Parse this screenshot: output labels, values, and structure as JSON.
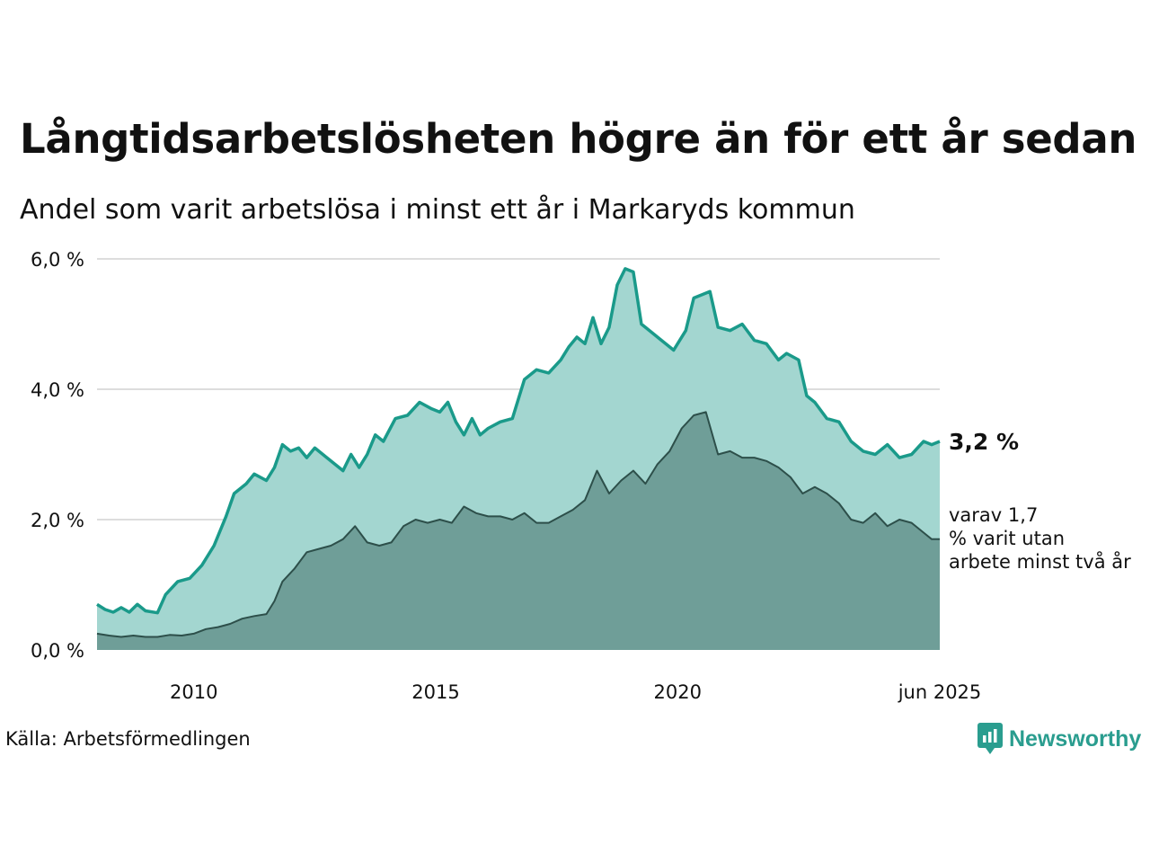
{
  "title": "Långtidsarbetslösheten högre än för ett år sedan",
  "subtitle": "Andel som varit arbetslösa i minst ett år i Markaryds kommun",
  "source": "Källa: Arbetsförmedlingen",
  "brand": "Newsworthy",
  "colors": {
    "main_line": "#1a9a8a",
    "main_area": "#a3d6d0",
    "sub_line": "#2d4f4a",
    "sub_area": "#6f9e98",
    "grid": "#dddddd",
    "brand": "#2a9d8f"
  },
  "chart_data": {
    "type": "area",
    "x_start": "2008-01",
    "x_end": "2025-06",
    "xticks": [
      {
        "date": "2010-01",
        "label": "2010"
      },
      {
        "date": "2015-01",
        "label": "2015"
      },
      {
        "date": "2020-01",
        "label": "2020"
      },
      {
        "date": "2025-06",
        "label": "jun 2025"
      }
    ],
    "ylim": [
      0,
      6
    ],
    "yticks": [
      {
        "value": 0,
        "label": "0,0 %"
      },
      {
        "value": 2,
        "label": "2,0 %"
      },
      {
        "value": 4,
        "label": "4,0 %"
      },
      {
        "value": 6,
        "label": "6,0 %"
      }
    ],
    "grid": true,
    "series": [
      {
        "label": "3,2 %",
        "points": [
          [
            "2008-01",
            0.7
          ],
          [
            "2008-03",
            0.62
          ],
          [
            "2008-05",
            0.58
          ],
          [
            "2008-07",
            0.65
          ],
          [
            "2008-09",
            0.58
          ],
          [
            "2008-11",
            0.7
          ],
          [
            "2009-01",
            0.6
          ],
          [
            "2009-04",
            0.57
          ],
          [
            "2009-06",
            0.85
          ],
          [
            "2009-09",
            1.05
          ],
          [
            "2009-12",
            1.1
          ],
          [
            "2010-03",
            1.3
          ],
          [
            "2010-06",
            1.6
          ],
          [
            "2010-09",
            2.05
          ],
          [
            "2010-11",
            2.4
          ],
          [
            "2011-02",
            2.55
          ],
          [
            "2011-04",
            2.7
          ],
          [
            "2011-07",
            2.6
          ],
          [
            "2011-09",
            2.8
          ],
          [
            "2011-11",
            3.15
          ],
          [
            "2012-01",
            3.05
          ],
          [
            "2012-03",
            3.1
          ],
          [
            "2012-05",
            2.95
          ],
          [
            "2012-07",
            3.1
          ],
          [
            "2012-10",
            2.95
          ],
          [
            "2012-12",
            2.85
          ],
          [
            "2013-02",
            2.75
          ],
          [
            "2013-04",
            3.0
          ],
          [
            "2013-06",
            2.8
          ],
          [
            "2013-08",
            3.0
          ],
          [
            "2013-10",
            3.3
          ],
          [
            "2013-12",
            3.2
          ],
          [
            "2014-03",
            3.55
          ],
          [
            "2014-06",
            3.6
          ],
          [
            "2014-09",
            3.8
          ],
          [
            "2014-12",
            3.7
          ],
          [
            "2015-02",
            3.65
          ],
          [
            "2015-04",
            3.8
          ],
          [
            "2015-06",
            3.5
          ],
          [
            "2015-08",
            3.3
          ],
          [
            "2015-10",
            3.55
          ],
          [
            "2015-12",
            3.3
          ],
          [
            "2016-02",
            3.4
          ],
          [
            "2016-05",
            3.5
          ],
          [
            "2016-08",
            3.55
          ],
          [
            "2016-11",
            4.15
          ],
          [
            "2017-02",
            4.3
          ],
          [
            "2017-05",
            4.25
          ],
          [
            "2017-08",
            4.45
          ],
          [
            "2017-10",
            4.65
          ],
          [
            "2017-12",
            4.8
          ],
          [
            "2018-02",
            4.7
          ],
          [
            "2018-04",
            5.1
          ],
          [
            "2018-06",
            4.7
          ],
          [
            "2018-08",
            4.95
          ],
          [
            "2018-10",
            5.6
          ],
          [
            "2018-12",
            5.85
          ],
          [
            "2019-02",
            5.8
          ],
          [
            "2019-04",
            5.0
          ],
          [
            "2019-06",
            4.9
          ],
          [
            "2019-09",
            4.75
          ],
          [
            "2019-12",
            4.6
          ],
          [
            "2020-03",
            4.9
          ],
          [
            "2020-05",
            5.4
          ],
          [
            "2020-07",
            5.45
          ],
          [
            "2020-09",
            5.5
          ],
          [
            "2020-11",
            4.95
          ],
          [
            "2021-02",
            4.9
          ],
          [
            "2021-05",
            5.0
          ],
          [
            "2021-08",
            4.75
          ],
          [
            "2021-11",
            4.7
          ],
          [
            "2022-02",
            4.45
          ],
          [
            "2022-04",
            4.55
          ],
          [
            "2022-07",
            4.45
          ],
          [
            "2022-09",
            3.9
          ],
          [
            "2022-11",
            3.8
          ],
          [
            "2023-02",
            3.55
          ],
          [
            "2023-05",
            3.5
          ],
          [
            "2023-08",
            3.2
          ],
          [
            "2023-11",
            3.05
          ],
          [
            "2024-02",
            3.0
          ],
          [
            "2024-05",
            3.15
          ],
          [
            "2024-08",
            2.95
          ],
          [
            "2024-11",
            3.0
          ],
          [
            "2025-02",
            3.2
          ],
          [
            "2025-04",
            3.15
          ],
          [
            "2025-06",
            3.2
          ]
        ]
      },
      {
        "label": "varav 1,7 % varit utan arbete minst två år",
        "points": [
          [
            "2008-01",
            0.25
          ],
          [
            "2008-04",
            0.22
          ],
          [
            "2008-07",
            0.2
          ],
          [
            "2008-10",
            0.22
          ],
          [
            "2009-01",
            0.2
          ],
          [
            "2009-04",
            0.2
          ],
          [
            "2009-07",
            0.23
          ],
          [
            "2009-10",
            0.22
          ],
          [
            "2010-01",
            0.25
          ],
          [
            "2010-04",
            0.32
          ],
          [
            "2010-07",
            0.35
          ],
          [
            "2010-10",
            0.4
          ],
          [
            "2011-01",
            0.48
          ],
          [
            "2011-04",
            0.52
          ],
          [
            "2011-07",
            0.55
          ],
          [
            "2011-09",
            0.75
          ],
          [
            "2011-11",
            1.05
          ],
          [
            "2012-02",
            1.25
          ],
          [
            "2012-05",
            1.5
          ],
          [
            "2012-08",
            1.55
          ],
          [
            "2012-11",
            1.6
          ],
          [
            "2013-02",
            1.7
          ],
          [
            "2013-05",
            1.9
          ],
          [
            "2013-08",
            1.65
          ],
          [
            "2013-11",
            1.6
          ],
          [
            "2014-02",
            1.65
          ],
          [
            "2014-05",
            1.9
          ],
          [
            "2014-08",
            2.0
          ],
          [
            "2014-11",
            1.95
          ],
          [
            "2015-02",
            2.0
          ],
          [
            "2015-05",
            1.95
          ],
          [
            "2015-08",
            2.2
          ],
          [
            "2015-11",
            2.1
          ],
          [
            "2016-02",
            2.05
          ],
          [
            "2016-05",
            2.05
          ],
          [
            "2016-08",
            2.0
          ],
          [
            "2016-11",
            2.1
          ],
          [
            "2017-02",
            1.95
          ],
          [
            "2017-05",
            1.95
          ],
          [
            "2017-08",
            2.05
          ],
          [
            "2017-11",
            2.15
          ],
          [
            "2018-02",
            2.3
          ],
          [
            "2018-05",
            2.75
          ],
          [
            "2018-08",
            2.4
          ],
          [
            "2018-11",
            2.6
          ],
          [
            "2019-02",
            2.75
          ],
          [
            "2019-05",
            2.55
          ],
          [
            "2019-08",
            2.85
          ],
          [
            "2019-11",
            3.05
          ],
          [
            "2020-02",
            3.4
          ],
          [
            "2020-05",
            3.6
          ],
          [
            "2020-08",
            3.65
          ],
          [
            "2020-11",
            3.0
          ],
          [
            "2021-02",
            3.05
          ],
          [
            "2021-05",
            2.95
          ],
          [
            "2021-08",
            2.95
          ],
          [
            "2021-11",
            2.9
          ],
          [
            "2022-02",
            2.8
          ],
          [
            "2022-05",
            2.65
          ],
          [
            "2022-08",
            2.4
          ],
          [
            "2022-11",
            2.5
          ],
          [
            "2023-02",
            2.4
          ],
          [
            "2023-05",
            2.25
          ],
          [
            "2023-08",
            2.0
          ],
          [
            "2023-11",
            1.95
          ],
          [
            "2024-02",
            2.1
          ],
          [
            "2024-05",
            1.9
          ],
          [
            "2024-08",
            2.0
          ],
          [
            "2024-11",
            1.95
          ],
          [
            "2025-02",
            1.8
          ],
          [
            "2025-04",
            1.7
          ],
          [
            "2025-06",
            1.7
          ]
        ]
      }
    ]
  }
}
